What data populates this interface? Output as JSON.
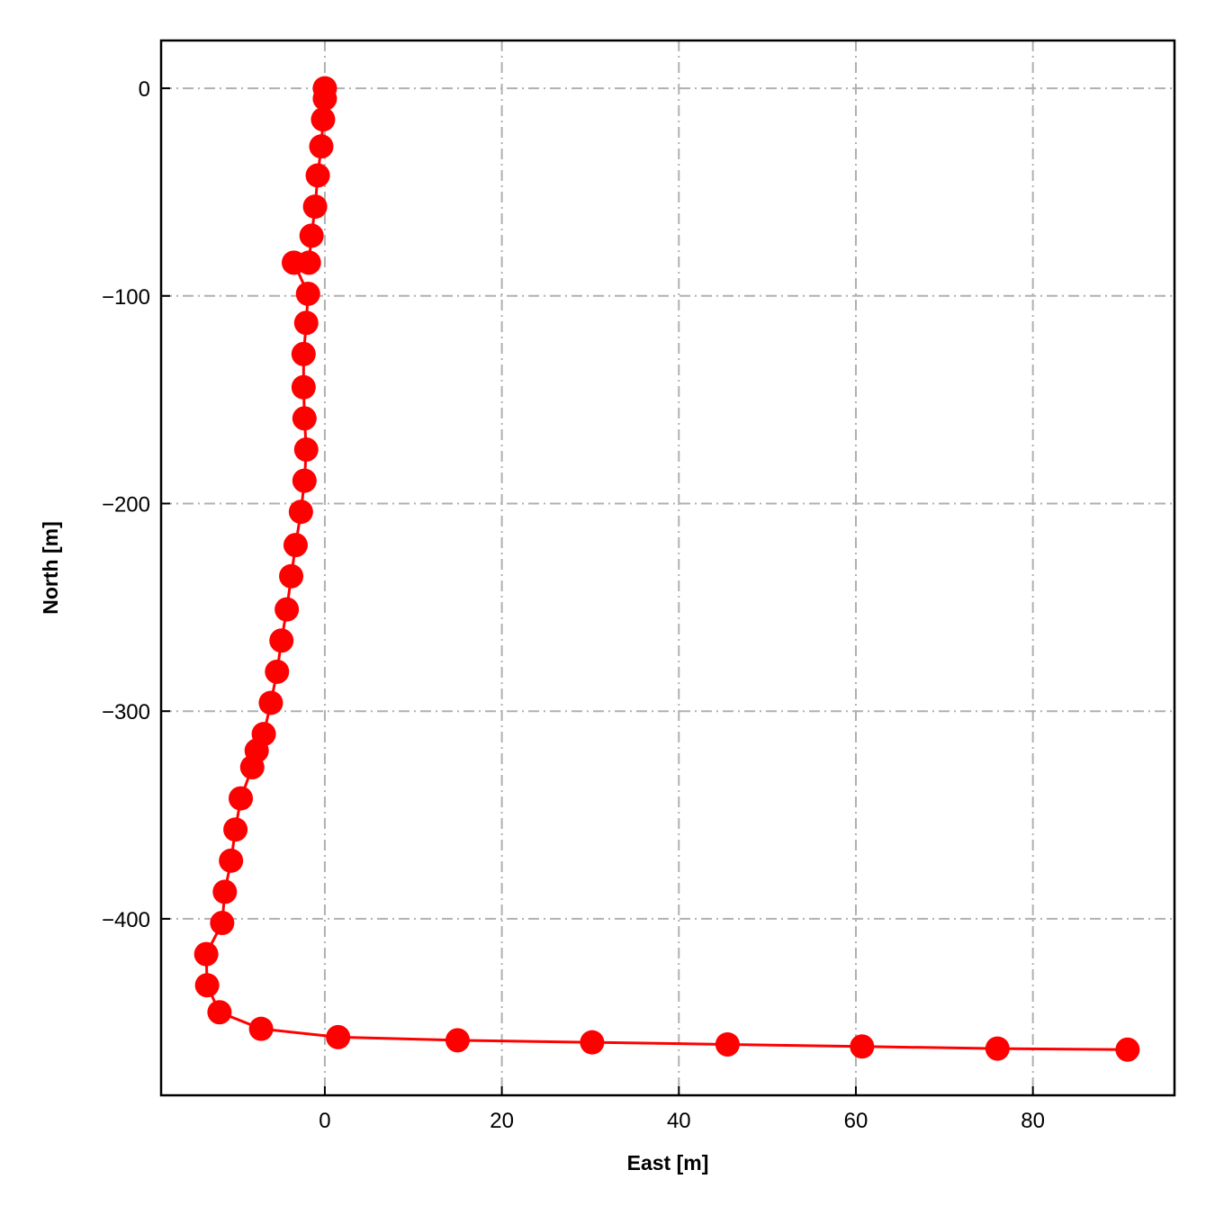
{
  "chart_data": {
    "type": "line",
    "title": "",
    "xlabel": "East [m]",
    "ylabel": "North [m]",
    "xlim": [
      -18.5,
      96
    ],
    "ylim": [
      -485,
      23
    ],
    "xticks": [
      0,
      20,
      40,
      60,
      80
    ],
    "yticks": [
      0,
      -100,
      -200,
      -300,
      -400
    ],
    "xtick_labels": [
      "0",
      "20",
      "40",
      "60",
      "80"
    ],
    "ytick_labels": [
      "0",
      "−100",
      "−200",
      "−300",
      "−400"
    ],
    "grid": true,
    "series": [
      {
        "color": "#ff0000",
        "marker": "circle",
        "x": [
          0,
          0,
          -0.2,
          -0.4,
          -0.8,
          -1.1,
          -1.5,
          -1.8,
          -3.5,
          -1.9,
          -2.1,
          -2.4,
          -2.4,
          -2.3,
          -2.1,
          -2.3,
          -2.7,
          -3.3,
          -3.8,
          -4.3,
          -4.9,
          -5.4,
          -6.1,
          -6.9,
          -7.7,
          -8.2,
          -9.5,
          -10.1,
          -10.6,
          -11.3,
          -11.6,
          -13.4,
          -13.3,
          -11.9,
          -7.2,
          1.5,
          15,
          30.2,
          45.5,
          60.7,
          76,
          90.7
        ],
        "y": [
          0,
          -5,
          -15,
          -28,
          -42,
          -57,
          -71,
          -84,
          -84,
          -99,
          -113,
          -128,
          -144,
          -159,
          -174,
          -189,
          -204,
          -220,
          -235,
          -251,
          -266,
          -281,
          -296,
          -311,
          -319,
          -327,
          -342,
          -357,
          -372,
          -387,
          -402,
          -417,
          -432,
          -445,
          -453,
          -457,
          -458.5,
          -459.5,
          -460.5,
          -461.5,
          -462.5,
          -463
        ]
      }
    ]
  }
}
